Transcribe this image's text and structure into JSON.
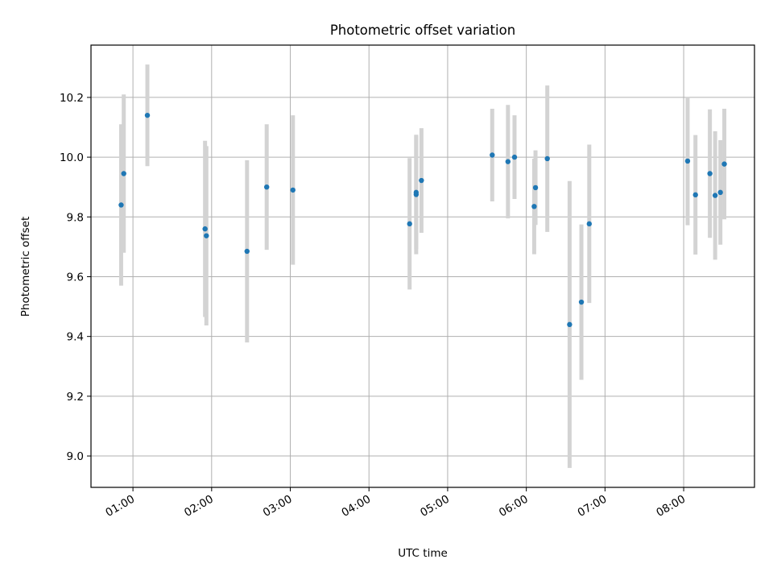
{
  "chart_data": {
    "type": "scatter",
    "title": "Photometric offset variation",
    "xlabel": "UTC time",
    "ylabel": "Photometric offset",
    "xlim": [
      "00:28",
      "08:54"
    ],
    "ylim": [
      8.895,
      10.375
    ],
    "x_ticks": [
      "01:00",
      "02:00",
      "03:00",
      "04:00",
      "05:00",
      "06:00",
      "07:00",
      "08:00"
    ],
    "y_ticks": [
      "9.0",
      "9.2",
      "9.4",
      "9.6",
      "9.8",
      "10.0",
      "10.2"
    ],
    "grid": true,
    "marker_color": "#1f77b4",
    "errorbar_color": "#d3d3d3",
    "series": [
      {
        "points": [
          {
            "x": "00:51",
            "y": 9.84,
            "err": 0.27
          },
          {
            "x": "00:53",
            "y": 9.945,
            "err": 0.265
          },
          {
            "x": "01:11",
            "y": 10.14,
            "err": 0.17
          },
          {
            "x": "01:55",
            "y": 9.76,
            "err": 0.295
          },
          {
            "x": "01:56",
            "y": 9.737,
            "err": 0.3
          },
          {
            "x": "02:27",
            "y": 9.685,
            "err": 0.305
          },
          {
            "x": "02:42",
            "y": 9.9,
            "err": 0.21
          },
          {
            "x": "03:02",
            "y": 9.89,
            "err": 0.25
          },
          {
            "x": "04:31",
            "y": 9.777,
            "err": 0.22
          },
          {
            "x": "04:36",
            "y": 9.875,
            "err": 0.2
          },
          {
            "x": "04:36",
            "y": 9.882,
            "err": 0.19
          },
          {
            "x": "04:40",
            "y": 9.922,
            "err": 0.175
          },
          {
            "x": "05:34",
            "y": 10.007,
            "err": 0.155
          },
          {
            "x": "05:46",
            "y": 9.985,
            "err": 0.19
          },
          {
            "x": "05:51",
            "y": 10.0,
            "err": 0.14
          },
          {
            "x": "06:06",
            "y": 9.835,
            "err": 0.16
          },
          {
            "x": "06:07",
            "y": 9.898,
            "err": 0.125
          },
          {
            "x": "06:16",
            "y": 9.995,
            "err": 0.245
          },
          {
            "x": "06:33",
            "y": 9.44,
            "err": 0.48
          },
          {
            "x": "06:42",
            "y": 9.515,
            "err": 0.26
          },
          {
            "x": "06:48",
            "y": 9.777,
            "err": 0.265
          },
          {
            "x": "08:03",
            "y": 9.987,
            "err": 0.215
          },
          {
            "x": "08:09",
            "y": 9.874,
            "err": 0.2
          },
          {
            "x": "08:20",
            "y": 9.945,
            "err": 0.215
          },
          {
            "x": "08:24",
            "y": 9.872,
            "err": 0.215
          },
          {
            "x": "08:28",
            "y": 9.882,
            "err": 0.175
          },
          {
            "x": "08:31",
            "y": 9.977,
            "err": 0.185
          }
        ]
      }
    ]
  }
}
